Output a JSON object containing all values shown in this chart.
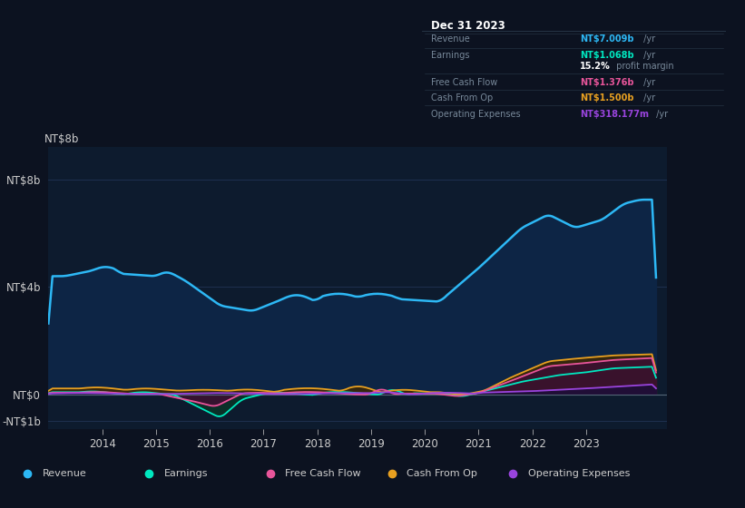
{
  "bg_color": "#0c1220",
  "plot_bg_color": "#0d1b2e",
  "chart_outer_bg": "#0c1220",
  "text_color": "#cccccc",
  "ytick_labels": [
    "NT$8b",
    "NT$4b",
    "NT$0",
    "-NT$1b"
  ],
  "ytick_values": [
    8000000000,
    4000000000,
    0,
    -1000000000
  ],
  "ylim": [
    -1300000000,
    9200000000
  ],
  "xlim": [
    2013.0,
    2024.5
  ],
  "xtick_years": [
    2014,
    2015,
    2016,
    2017,
    2018,
    2019,
    2020,
    2021,
    2022,
    2023
  ],
  "grid_color": "#1e3050",
  "revenue_color": "#2db8f5",
  "earnings_color": "#00e8c0",
  "fcf_color": "#e8559a",
  "cashfromop_color": "#e8a020",
  "opex_color": "#9944dd",
  "revenue_fill": "#0d2545",
  "earnings_fill": "#0a3028",
  "fcf_fill": "#3a1030",
  "cashfromop_fill": "#3a2808",
  "opex_fill": "#1e0e38",
  "tooltip_bg": "#060e18",
  "tooltip_border": "#2a3a4a",
  "info_label_color": "#778899",
  "revenue_value_color": "#2db8f5",
  "earnings_value_color": "#00e8c0",
  "fcf_value_color": "#e8559a",
  "cashfromop_value_color": "#e8a020",
  "opex_value_color": "#9944dd",
  "white_color": "#ffffff",
  "legend_items": [
    "Revenue",
    "Earnings",
    "Free Cash Flow",
    "Cash From Op",
    "Operating Expenses"
  ],
  "tooltip_title": "Dec 31 2023",
  "tooltip_rows": [
    {
      "label": "Revenue",
      "value": "NT$7.009b",
      "suffix": " /yr",
      "color": "#2db8f5"
    },
    {
      "label": "Earnings",
      "value": "NT$1.068b",
      "suffix": " /yr",
      "color": "#00e8c0"
    },
    {
      "label": "",
      "value": "15.2%",
      "suffix": " profit margin",
      "color": "#ffffff"
    },
    {
      "label": "Free Cash Flow",
      "value": "NT$1.376b",
      "suffix": " /yr",
      "color": "#e8559a"
    },
    {
      "label": "Cash From Op",
      "value": "NT$1.500b",
      "suffix": " /yr",
      "color": "#e8a020"
    },
    {
      "label": "Operating Expenses",
      "value": "NT$318.177m",
      "suffix": " /yr",
      "color": "#9944dd"
    }
  ]
}
